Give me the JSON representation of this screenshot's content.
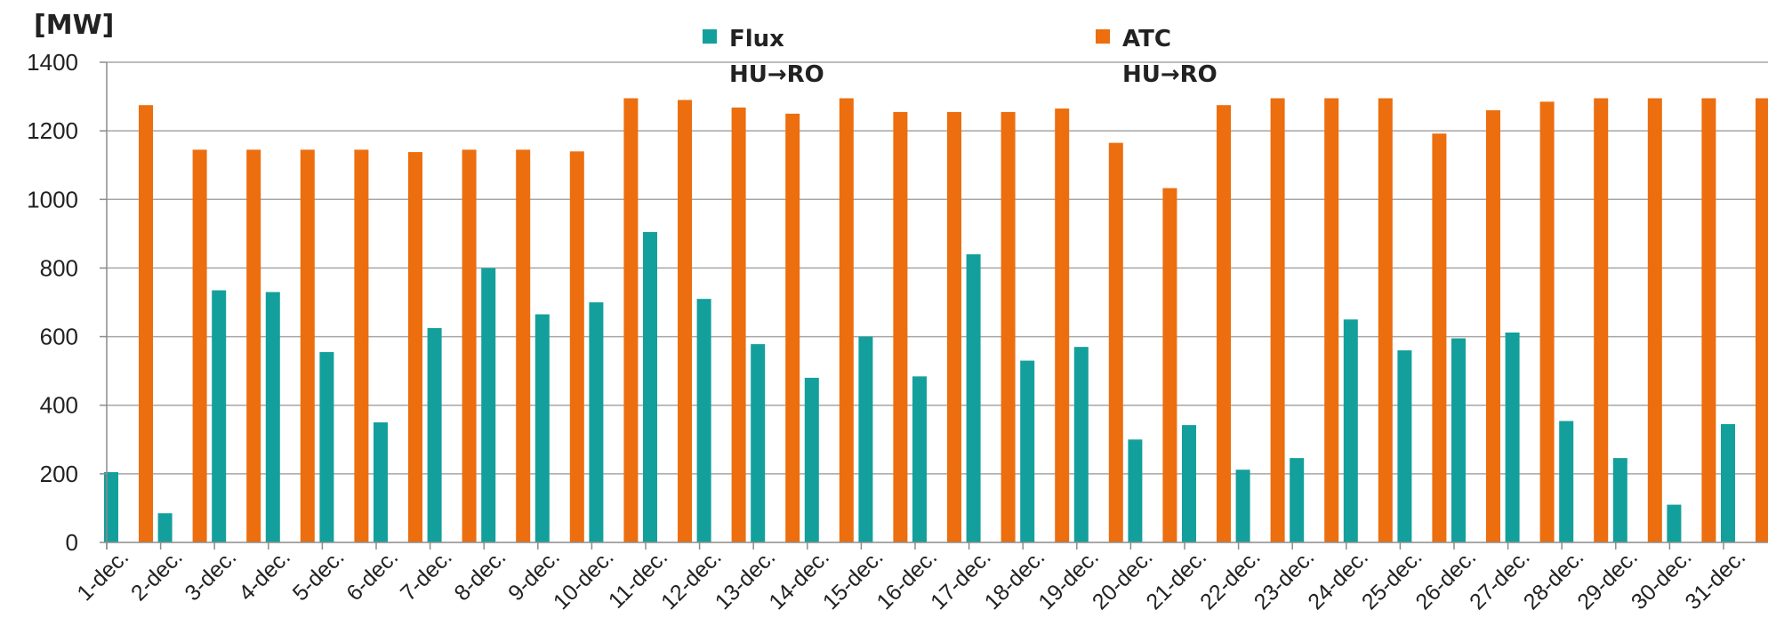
{
  "chart_data": {
    "type": "bar",
    "ylabel": "[MW]",
    "ylim": [
      0,
      1400
    ],
    "yticks": [
      "0",
      "200",
      "400",
      "600",
      "800",
      "1000",
      "1200",
      "1400"
    ],
    "grid": true,
    "legend_position": "top",
    "categories": [
      "1-dec.",
      "2-dec.",
      "3-dec.",
      "4-dec.",
      "5-dec.",
      "6-dec.",
      "7-dec.",
      "8-dec.",
      "9-dec.",
      "10-dec.",
      "11-dec.",
      "12-dec.",
      "13-dec.",
      "14-dec.",
      "15-dec.",
      "16-dec.",
      "17-dec.",
      "18-dec.",
      "19-dec.",
      "20-dec.",
      "21-dec.",
      "22-dec.",
      "23-dec.",
      "24-dec.",
      "25-dec.",
      "26-dec.",
      "27-dec.",
      "28-dec.",
      "29-dec.",
      "30-dec.",
      "31-dec."
    ],
    "series": [
      {
        "name": "Flux",
        "legend_line2": "HU→RO",
        "color": "#13A09C",
        "values": [
          205,
          85,
          735,
          730,
          555,
          350,
          625,
          800,
          665,
          700,
          905,
          710,
          578,
          480,
          600,
          484,
          840,
          530,
          570,
          300,
          342,
          212,
          246,
          650,
          560,
          595,
          612,
          354,
          246,
          110,
          345
        ]
      },
      {
        "name": "ATC",
        "legend_line2": "HU→RO",
        "color": "#EC6E0F",
        "values": [
          1275,
          1145,
          1145,
          1145,
          1145,
          1138,
          1145,
          1145,
          1140,
          1295,
          1290,
          1268,
          1250,
          1295,
          1255,
          1255,
          1255,
          1265,
          1165,
          1033,
          1275,
          1295,
          1295,
          1295,
          1192,
          1260,
          1285,
          1295,
          1295,
          1295,
          1295
        ]
      }
    ]
  }
}
